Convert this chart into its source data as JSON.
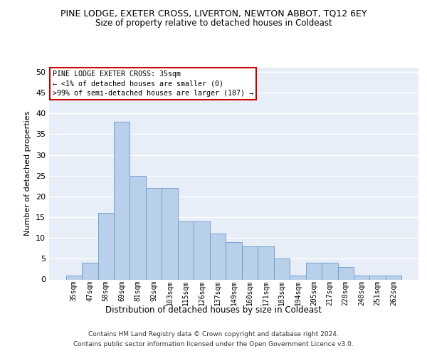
{
  "title": "PINE LODGE, EXETER CROSS, LIVERTON, NEWTON ABBOT, TQ12 6EY",
  "subtitle": "Size of property relative to detached houses in Coldeast",
  "xlabel": "Distribution of detached houses by size in Coldeast",
  "ylabel": "Number of detached properties",
  "categories": [
    "35sqm",
    "47sqm",
    "58sqm",
    "69sqm",
    "81sqm",
    "92sqm",
    "103sqm",
    "115sqm",
    "126sqm",
    "137sqm",
    "149sqm",
    "160sqm",
    "171sqm",
    "183sqm",
    "194sqm",
    "205sqm",
    "217sqm",
    "228sqm",
    "240sqm",
    "251sqm",
    "262sqm"
  ],
  "values": [
    1,
    4,
    16,
    38,
    25,
    22,
    22,
    14,
    14,
    11,
    9,
    8,
    8,
    5,
    1,
    4,
    4,
    3,
    1,
    1,
    1
  ],
  "bar_color": "#b8d0ea",
  "bar_edge_color": "#6699cc",
  "background_color": "#e8eef8",
  "grid_color": "#ffffff",
  "annotation_line1": "PINE LODGE EXETER CROSS: 35sqm",
  "annotation_line2": "← <1% of detached houses are smaller (0)",
  "annotation_line3": ">99% of semi-detached houses are larger (187) →",
  "annotation_box_edgecolor": "#cc0000",
  "ylim": [
    0,
    51
  ],
  "yticks": [
    0,
    5,
    10,
    15,
    20,
    25,
    30,
    35,
    40,
    45,
    50
  ],
  "footer_line1": "Contains HM Land Registry data © Crown copyright and database right 2024.",
  "footer_line2": "Contains public sector information licensed under the Open Government Licence v3.0."
}
